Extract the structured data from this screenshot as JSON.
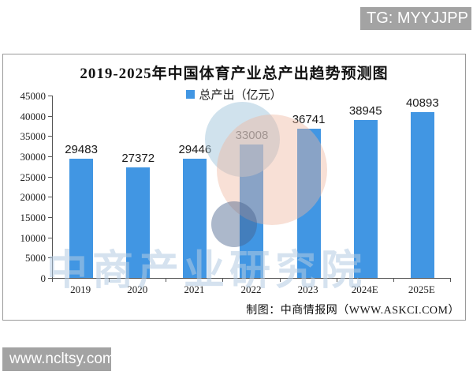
{
  "badges": {
    "tg": "TG: MYYJJPP",
    "site": "www.ncltsy.com"
  },
  "chart": {
    "title": "2019-2025年中国体育产业总产出趋势预测图",
    "legend_label": "总产出（亿元）",
    "attribution": "制图：中商情报网（WWW.ASKCI.COM）",
    "watermark_text": "中商产业研究院",
    "colors": {
      "bar": "#4196e3",
      "badge_bg": "#a3a3a3",
      "watermark_text": "#b3cbe2",
      "axis": "#555555"
    }
  },
  "chart_data": {
    "type": "bar",
    "title": "2019-2025年中国体育产业总产出趋势预测图",
    "series_name": "总产出（亿元）",
    "categories": [
      "2019",
      "2020",
      "2021",
      "2022",
      "2023",
      "2024E",
      "2025E"
    ],
    "values": [
      29483,
      27372,
      29446,
      33008,
      36741,
      38945,
      40893
    ],
    "xlabel": "",
    "ylabel": "",
    "ylim": [
      0,
      45000
    ],
    "ytick_step": 5000,
    "grid": false,
    "legend_position": "top-center",
    "data_labels": true
  }
}
